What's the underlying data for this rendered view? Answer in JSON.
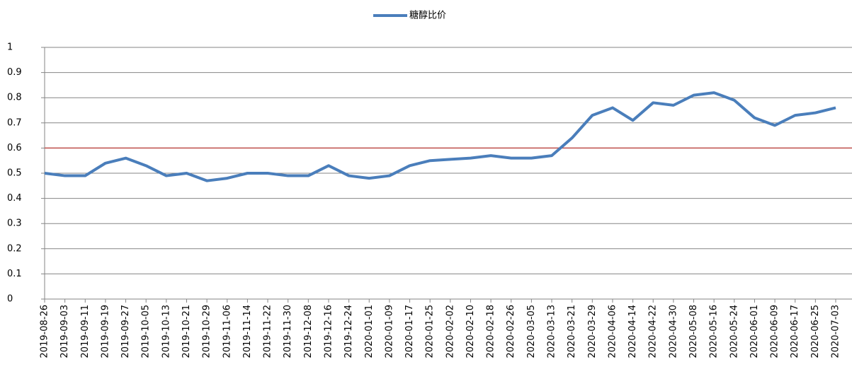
{
  "chart_data": {
    "type": "line",
    "categories": [
      "2019-08-26",
      "2019-09-03",
      "2019-09-11",
      "2019-09-19",
      "2019-09-27",
      "2019-10-05",
      "2019-10-13",
      "2019-10-21",
      "2019-10-29",
      "2019-11-06",
      "2019-11-14",
      "2019-11-22",
      "2019-11-30",
      "2019-12-08",
      "2019-12-16",
      "2019-12-24",
      "2020-01-01",
      "2020-01-09",
      "2020-01-17",
      "2020-01-25",
      "2020-02-02",
      "2020-02-10",
      "2020-02-18",
      "2020-02-26",
      "2020-03-05",
      "2020-03-13",
      "2020-03-21",
      "2020-03-29",
      "2020-04-06",
      "2020-04-14",
      "2020-04-22",
      "2020-04-30",
      "2020-05-08",
      "2020-05-16",
      "2020-05-24",
      "2020-06-01",
      "2020-06-09",
      "2020-06-17",
      "2020-06-25",
      "2020-07-03"
    ],
    "series": [
      {
        "name": "糖醇比价",
        "color": "#4a7ebb",
        "values": [
          0.5,
          0.49,
          0.49,
          0.54,
          0.56,
          0.53,
          0.49,
          0.5,
          0.47,
          0.48,
          0.5,
          0.5,
          0.49,
          0.49,
          0.53,
          0.49,
          0.48,
          0.49,
          0.53,
          0.55,
          0.555,
          0.56,
          0.57,
          0.56,
          0.56,
          0.57,
          0.64,
          0.73,
          0.76,
          0.71,
          0.78,
          0.77,
          0.81,
          0.82,
          0.79,
          0.72,
          0.69,
          0.73,
          0.74,
          0.76
        ]
      }
    ],
    "reference_line": {
      "value": 0.6,
      "color": "#c0504d"
    },
    "ylim": [
      0,
      1
    ],
    "yticks": [
      0,
      0.1,
      0.2,
      0.3,
      0.4,
      0.5,
      0.6,
      0.7,
      0.8,
      0.9,
      1
    ],
    "grid": true,
    "legend": "top"
  }
}
